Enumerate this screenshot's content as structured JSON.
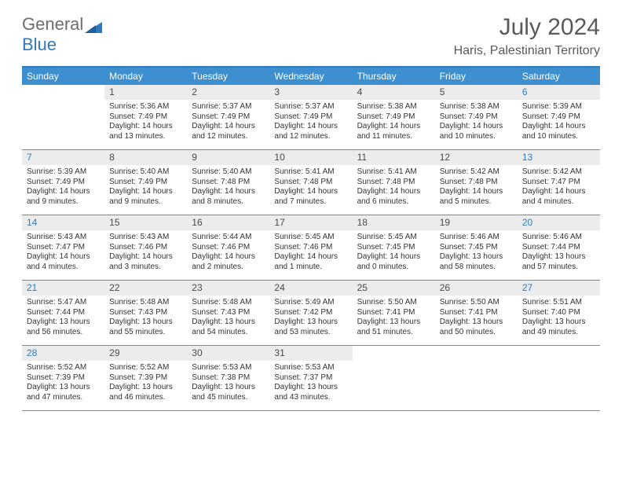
{
  "logo": {
    "general": "General",
    "blue": "Blue"
  },
  "title": "July 2024",
  "location": "Haris, Palestinian Territory",
  "colors": {
    "header_bg": "#3d8fcf",
    "accent": "#2f7bbf",
    "daynum_bg": "#ececec",
    "text": "#333333",
    "weekend_num": "#2f7bbf"
  },
  "days_of_week": [
    "Sunday",
    "Monday",
    "Tuesday",
    "Wednesday",
    "Thursday",
    "Friday",
    "Saturday"
  ],
  "calendar": {
    "first_weekday_index": 1,
    "num_days": 31,
    "weekend_columns": [
      0,
      6
    ],
    "days": [
      {
        "n": 1,
        "sunrise": "5:36 AM",
        "sunset": "7:49 PM",
        "daylight": "14 hours and 13 minutes."
      },
      {
        "n": 2,
        "sunrise": "5:37 AM",
        "sunset": "7:49 PM",
        "daylight": "14 hours and 12 minutes."
      },
      {
        "n": 3,
        "sunrise": "5:37 AM",
        "sunset": "7:49 PM",
        "daylight": "14 hours and 12 minutes."
      },
      {
        "n": 4,
        "sunrise": "5:38 AM",
        "sunset": "7:49 PM",
        "daylight": "14 hours and 11 minutes."
      },
      {
        "n": 5,
        "sunrise": "5:38 AM",
        "sunset": "7:49 PM",
        "daylight": "14 hours and 10 minutes."
      },
      {
        "n": 6,
        "sunrise": "5:39 AM",
        "sunset": "7:49 PM",
        "daylight": "14 hours and 10 minutes."
      },
      {
        "n": 7,
        "sunrise": "5:39 AM",
        "sunset": "7:49 PM",
        "daylight": "14 hours and 9 minutes."
      },
      {
        "n": 8,
        "sunrise": "5:40 AM",
        "sunset": "7:49 PM",
        "daylight": "14 hours and 9 minutes."
      },
      {
        "n": 9,
        "sunrise": "5:40 AM",
        "sunset": "7:48 PM",
        "daylight": "14 hours and 8 minutes."
      },
      {
        "n": 10,
        "sunrise": "5:41 AM",
        "sunset": "7:48 PM",
        "daylight": "14 hours and 7 minutes."
      },
      {
        "n": 11,
        "sunrise": "5:41 AM",
        "sunset": "7:48 PM",
        "daylight": "14 hours and 6 minutes."
      },
      {
        "n": 12,
        "sunrise": "5:42 AM",
        "sunset": "7:48 PM",
        "daylight": "14 hours and 5 minutes."
      },
      {
        "n": 13,
        "sunrise": "5:42 AM",
        "sunset": "7:47 PM",
        "daylight": "14 hours and 4 minutes."
      },
      {
        "n": 14,
        "sunrise": "5:43 AM",
        "sunset": "7:47 PM",
        "daylight": "14 hours and 4 minutes."
      },
      {
        "n": 15,
        "sunrise": "5:43 AM",
        "sunset": "7:46 PM",
        "daylight": "14 hours and 3 minutes."
      },
      {
        "n": 16,
        "sunrise": "5:44 AM",
        "sunset": "7:46 PM",
        "daylight": "14 hours and 2 minutes."
      },
      {
        "n": 17,
        "sunrise": "5:45 AM",
        "sunset": "7:46 PM",
        "daylight": "14 hours and 1 minute."
      },
      {
        "n": 18,
        "sunrise": "5:45 AM",
        "sunset": "7:45 PM",
        "daylight": "14 hours and 0 minutes."
      },
      {
        "n": 19,
        "sunrise": "5:46 AM",
        "sunset": "7:45 PM",
        "daylight": "13 hours and 58 minutes."
      },
      {
        "n": 20,
        "sunrise": "5:46 AM",
        "sunset": "7:44 PM",
        "daylight": "13 hours and 57 minutes."
      },
      {
        "n": 21,
        "sunrise": "5:47 AM",
        "sunset": "7:44 PM",
        "daylight": "13 hours and 56 minutes."
      },
      {
        "n": 22,
        "sunrise": "5:48 AM",
        "sunset": "7:43 PM",
        "daylight": "13 hours and 55 minutes."
      },
      {
        "n": 23,
        "sunrise": "5:48 AM",
        "sunset": "7:43 PM",
        "daylight": "13 hours and 54 minutes."
      },
      {
        "n": 24,
        "sunrise": "5:49 AM",
        "sunset": "7:42 PM",
        "daylight": "13 hours and 53 minutes."
      },
      {
        "n": 25,
        "sunrise": "5:50 AM",
        "sunset": "7:41 PM",
        "daylight": "13 hours and 51 minutes."
      },
      {
        "n": 26,
        "sunrise": "5:50 AM",
        "sunset": "7:41 PM",
        "daylight": "13 hours and 50 minutes."
      },
      {
        "n": 27,
        "sunrise": "5:51 AM",
        "sunset": "7:40 PM",
        "daylight": "13 hours and 49 minutes."
      },
      {
        "n": 28,
        "sunrise": "5:52 AM",
        "sunset": "7:39 PM",
        "daylight": "13 hours and 47 minutes."
      },
      {
        "n": 29,
        "sunrise": "5:52 AM",
        "sunset": "7:39 PM",
        "daylight": "13 hours and 46 minutes."
      },
      {
        "n": 30,
        "sunrise": "5:53 AM",
        "sunset": "7:38 PM",
        "daylight": "13 hours and 45 minutes."
      },
      {
        "n": 31,
        "sunrise": "5:53 AM",
        "sunset": "7:37 PM",
        "daylight": "13 hours and 43 minutes."
      }
    ]
  },
  "labels": {
    "sunrise": "Sunrise:",
    "sunset": "Sunset:",
    "daylight": "Daylight:"
  }
}
